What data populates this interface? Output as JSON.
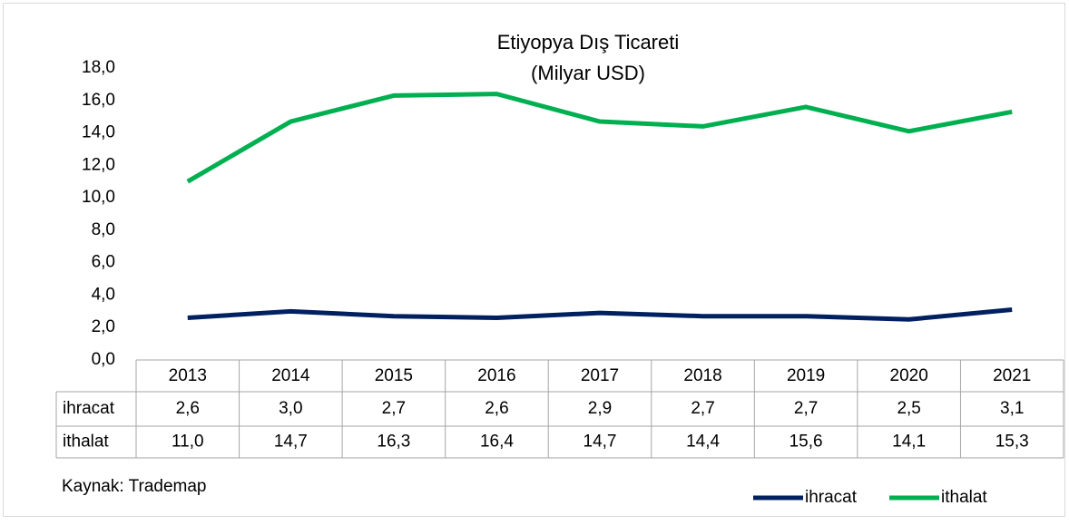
{
  "chart_data": {
    "type": "line",
    "title": "Etiyopya Dış Ticareti",
    "subtitle": "(Milyar USD)",
    "categories": [
      "2013",
      "2014",
      "2015",
      "2016",
      "2017",
      "2018",
      "2019",
      "2020",
      "2021"
    ],
    "series": [
      {
        "name": "ihracat",
        "color": "#002060",
        "values": [
          2.6,
          3.0,
          2.7,
          2.6,
          2.9,
          2.7,
          2.7,
          2.5,
          3.1
        ],
        "value_labels": [
          "2,6",
          "3,0",
          "2,7",
          "2,6",
          "2,9",
          "2,7",
          "2,7",
          "2,5",
          "3,1"
        ]
      },
      {
        "name": "ithalat",
        "color": "#00b050",
        "values": [
          11.0,
          14.7,
          16.3,
          16.4,
          14.7,
          14.4,
          15.6,
          14.1,
          15.3
        ],
        "value_labels": [
          "11,0",
          "14,7",
          "16,3",
          "16,4",
          "14,7",
          "14,4",
          "15,6",
          "14,1",
          "15,3"
        ]
      }
    ],
    "ylim": [
      0,
      18
    ],
    "yticks": [
      {
        "value": 0,
        "label": "0,0"
      },
      {
        "value": 2,
        "label": "2,0"
      },
      {
        "value": 4,
        "label": "4,0"
      },
      {
        "value": 6,
        "label": "6,0"
      },
      {
        "value": 8,
        "label": "8,0"
      },
      {
        "value": 10,
        "label": "10,0"
      },
      {
        "value": 12,
        "label": "12,0"
      },
      {
        "value": 14,
        "label": "14,0"
      },
      {
        "value": 16,
        "label": "16,0"
      },
      {
        "value": 18,
        "label": "18,0"
      }
    ],
    "source": "Kaynak: Trademap",
    "legend": "bottom-right"
  }
}
